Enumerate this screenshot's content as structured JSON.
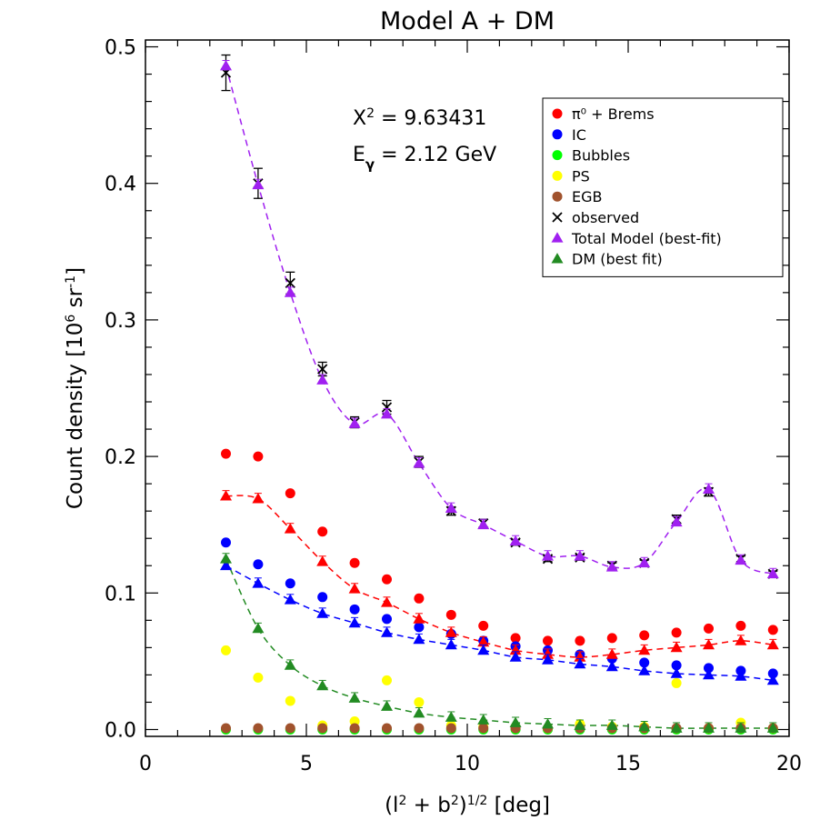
{
  "chart_data": {
    "type": "scatter",
    "title": "Model A + DM",
    "xlabel": {
      "base": "(l",
      "sup1": "2",
      "mid": " + b",
      "sup2": "2",
      "close": ")",
      "sup3": "1/2",
      "tail": " [deg]"
    },
    "ylabel": {
      "base": "Count density  [10",
      "sup1": "6",
      "mid": " sr",
      "sup2": "-1",
      "tail": "]"
    },
    "xlim": [
      0,
      20
    ],
    "ylim": [
      -0.005,
      0.505
    ],
    "xticks": [
      "0",
      "5",
      "10",
      "15",
      "20"
    ],
    "xtick_values": [
      0,
      5,
      10,
      15,
      20
    ],
    "yticks": [
      "0.0",
      "0.1",
      "0.2",
      "0.3",
      "0.4",
      "0.5"
    ],
    "ytick_values": [
      0.0,
      0.1,
      0.2,
      0.3,
      0.4,
      0.5
    ],
    "annotations": [
      {
        "base": "X",
        "sup": "2",
        "text": " = 9.63431"
      },
      {
        "base": "E",
        "sub": "γ",
        "text": " = 2.12 GeV"
      }
    ],
    "legend_position": "top-right",
    "x": [
      2.5,
      3.5,
      4.5,
      5.5,
      6.5,
      7.5,
      8.5,
      9.5,
      10.5,
      11.5,
      12.5,
      13.5,
      14.5,
      15.5,
      16.5,
      17.5,
      18.5,
      19.5
    ],
    "series": [
      {
        "name": "π⁰ + Brems",
        "marker": "circle",
        "color": "#ff0000",
        "values": [
          0.202,
          0.2,
          0.173,
          0.145,
          0.122,
          0.11,
          0.096,
          0.084,
          0.076,
          0.067,
          0.065,
          0.065,
          0.067,
          0.069,
          0.071,
          0.074,
          0.076,
          0.073
        ]
      },
      {
        "name": "IC",
        "marker": "circle",
        "color": "#0000ff",
        "values": [
          0.137,
          0.121,
          0.107,
          0.097,
          0.088,
          0.081,
          0.075,
          0.07,
          0.065,
          0.061,
          0.058,
          0.055,
          0.052,
          0.049,
          0.047,
          0.045,
          0.043,
          0.041
        ]
      },
      {
        "name": "Bubbles",
        "marker": "circle",
        "color": "#00ff00",
        "values": [
          0.0,
          0.0,
          0.0,
          0.0,
          0.0,
          0.0,
          0.0,
          0.0,
          0.0,
          0.0,
          0.0,
          0.0,
          0.0,
          0.0,
          0.0,
          0.0,
          0.0,
          0.0
        ]
      },
      {
        "name": "PS",
        "marker": "circle",
        "color": "#ffff00",
        "values": [
          0.058,
          0.038,
          0.021,
          0.003,
          0.006,
          0.036,
          0.02,
          0.003,
          0.002,
          0.002,
          0.001,
          0.004,
          0.002,
          0.002,
          0.034,
          0.001,
          0.005,
          0.001
        ]
      },
      {
        "name": "EGB",
        "marker": "circle",
        "color": "#a0522d",
        "values": [
          0.001,
          0.001,
          0.001,
          0.001,
          0.001,
          0.001,
          0.001,
          0.001,
          0.001,
          0.001,
          0.001,
          0.001,
          0.001,
          0.001,
          0.001,
          0.001,
          0.001,
          0.001
        ]
      },
      {
        "name": "observed",
        "marker": "x",
        "color": "#000000",
        "values": [
          0.481,
          0.4,
          0.327,
          0.264,
          0.225,
          0.236,
          0.196,
          0.16,
          0.151,
          0.137,
          0.125,
          0.126,
          0.12,
          0.122,
          0.154,
          0.174,
          0.125,
          0.114
        ],
        "errors": [
          0.013,
          0.011,
          0.008,
          0.005,
          0.004,
          0.005,
          0.004,
          0.003,
          0.003,
          0.002,
          0.002,
          0.002,
          0.002,
          0.002,
          0.003,
          0.003,
          0.002,
          0.002
        ]
      },
      {
        "name": "Total Model (best-fit)",
        "marker": "triangle",
        "color": "#a020f0",
        "line": true,
        "values": [
          0.486,
          0.399,
          0.32,
          0.256,
          0.224,
          0.231,
          0.195,
          0.162,
          0.15,
          0.138,
          0.127,
          0.127,
          0.119,
          0.122,
          0.152,
          0.176,
          0.124,
          0.114
        ]
      },
      {
        "name": "π⁰ + Brems (fit)",
        "legend": false,
        "marker": "triangle",
        "color": "#ff0000",
        "line": true,
        "values": [
          0.171,
          0.169,
          0.147,
          0.123,
          0.103,
          0.093,
          0.081,
          0.071,
          0.064,
          0.058,
          0.055,
          0.053,
          0.055,
          0.058,
          0.06,
          0.062,
          0.065,
          0.062
        ]
      },
      {
        "name": "IC (fit)",
        "legend": false,
        "marker": "triangle",
        "color": "#0000ff",
        "line": true,
        "values": [
          0.12,
          0.107,
          0.095,
          0.085,
          0.078,
          0.071,
          0.066,
          0.062,
          0.058,
          0.053,
          0.051,
          0.048,
          0.046,
          0.043,
          0.041,
          0.04,
          0.039,
          0.036
        ]
      },
      {
        "name": "DM (best fit)",
        "marker": "triangle",
        "color": "#228b22",
        "line": true,
        "values": [
          0.125,
          0.074,
          0.047,
          0.032,
          0.023,
          0.017,
          0.012,
          0.009,
          0.007,
          0.005,
          0.004,
          0.003,
          0.003,
          0.002,
          0.001,
          0.001,
          0.001,
          0.001
        ]
      }
    ]
  }
}
